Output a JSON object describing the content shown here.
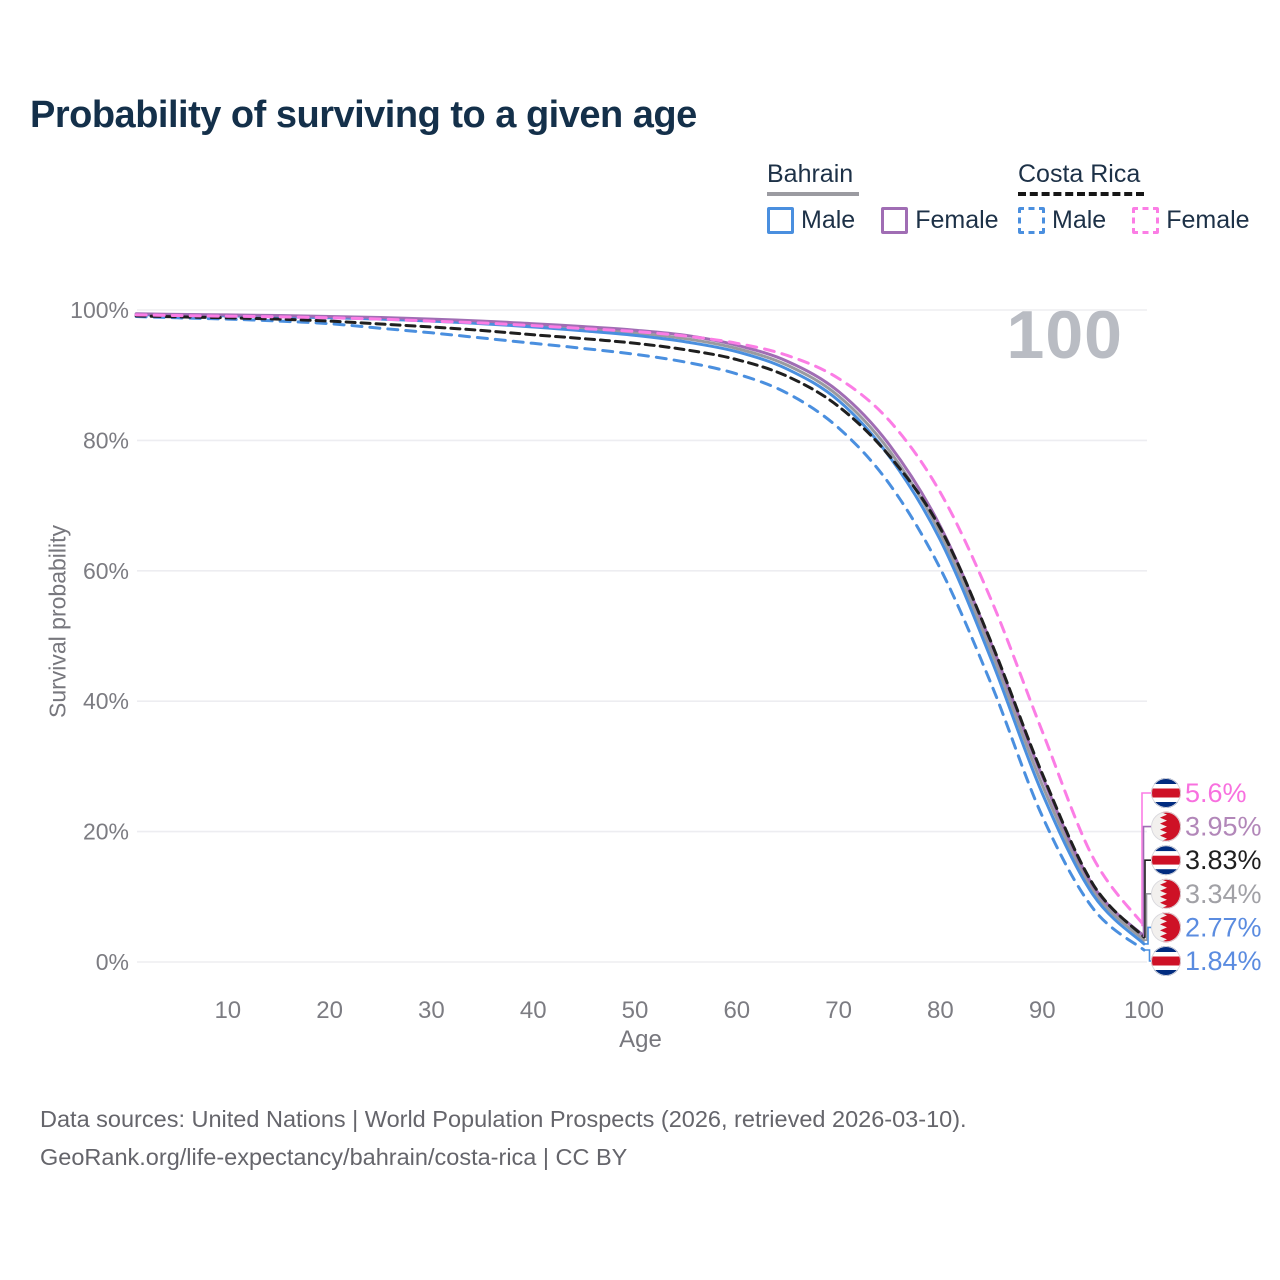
{
  "title": "Probability of surviving to a given age",
  "legend": {
    "groups": [
      {
        "name": "Bahrain",
        "line_style": "solid",
        "items": [
          {
            "label": "Male",
            "color": "#4a8fdf"
          },
          {
            "label": "Female",
            "color": "#a06db4"
          }
        ]
      },
      {
        "name": "Costa Rica",
        "line_style": "dashed",
        "items": [
          {
            "label": "Male",
            "color": "#4a8fdf"
          },
          {
            "label": "Female",
            "color": "#fb7de5"
          }
        ]
      }
    ]
  },
  "footer": {
    "line1": "Data sources: United Nations | World Population Prospects (2026, retrieved 2026-03-10).",
    "line2": "GeoRank.org/life-expectancy/bahrain/costa-rica | CC BY"
  },
  "chart_data": {
    "type": "line",
    "title": "Probability of surviving to a given age",
    "xlabel": "Age",
    "ylabel": "Survival probability",
    "watermark": "100",
    "xlim": [
      0,
      100
    ],
    "ylim": [
      0,
      100
    ],
    "x_ticks": [
      10,
      20,
      30,
      40,
      50,
      60,
      70,
      80,
      90,
      100
    ],
    "y_ticks": [
      0,
      20,
      40,
      60,
      80,
      100
    ],
    "y_tick_suffix": "%",
    "grid": "horizontal",
    "legend_position": "top-right",
    "x": [
      1,
      5,
      10,
      15,
      20,
      25,
      30,
      35,
      40,
      45,
      50,
      55,
      60,
      65,
      70,
      75,
      80,
      85,
      90,
      95,
      100
    ],
    "series": [
      {
        "name": "Bahrain Total",
        "color": "#9a9aa0",
        "dashed": false,
        "flag": "costarica_none_bahrain",
        "flag_country": "bahrain",
        "end_label": "3.34%",
        "end_value": 3.34,
        "label_color": "#a1a1a6",
        "values": [
          99.35,
          99.28,
          99.15,
          99.05,
          98.9,
          98.72,
          98.45,
          98.1,
          97.65,
          97.1,
          96.5,
          95.6,
          94.1,
          91.5,
          86.8,
          78.4,
          65.7,
          47.6,
          27.2,
          11.0,
          3.34
        ]
      },
      {
        "name": "Bahrain Male",
        "color": "#4a8fdf",
        "dashed": false,
        "flag_country": "bahrain",
        "end_label": "2.77%",
        "end_value": 2.77,
        "label_color": "#5b8ce0",
        "values": [
          99.3,
          99.2,
          99.1,
          98.97,
          98.8,
          98.6,
          98.3,
          97.9,
          97.4,
          96.8,
          96.1,
          95.1,
          93.6,
          90.9,
          86.1,
          77.5,
          64.7,
          46.4,
          25.9,
          10.3,
          2.77
        ]
      },
      {
        "name": "Bahrain Female",
        "color": "#a06db4",
        "dashed": false,
        "flag_country": "bahrain",
        "end_label": "3.95%",
        "end_value": 3.95,
        "label_color": "#b287b9",
        "values": [
          99.42,
          99.33,
          99.25,
          99.15,
          99.0,
          98.85,
          98.6,
          98.3,
          97.9,
          97.45,
          96.9,
          96.1,
          94.6,
          92.1,
          87.5,
          79.3,
          66.8,
          48.8,
          28.5,
          11.7,
          3.95
        ]
      },
      {
        "name": "Costa Rica Male",
        "color": "#4a8fdf",
        "dashed": true,
        "flag_country": "costarica",
        "end_label": "1.84%",
        "end_value": 1.84,
        "label_color": "#5b8ce0",
        "values": [
          99.0,
          98.8,
          98.6,
          98.3,
          97.9,
          97.2,
          96.5,
          95.7,
          94.9,
          94.1,
          93.2,
          92.0,
          90.2,
          87.2,
          81.9,
          73.3,
          60.3,
          42.6,
          22.4,
          8.2,
          1.84
        ]
      },
      {
        "name": "Costa Rica Total",
        "color": "#1f1f1f",
        "dashed": true,
        "flag_country": "costarica",
        "end_label": "3.83%",
        "end_value": 3.83,
        "label_color": "#1f1f1f",
        "values": [
          99.1,
          98.95,
          98.8,
          98.6,
          98.3,
          97.85,
          97.4,
          96.85,
          96.2,
          95.6,
          94.9,
          93.9,
          92.4,
          89.8,
          85.2,
          77.6,
          66.5,
          49.0,
          28.9,
          11.9,
          3.83
        ]
      },
      {
        "name": "Costa Rica Female",
        "color": "#fb7de5",
        "dashed": true,
        "flag_country": "costarica",
        "end_label": "5.6%",
        "end_value": 5.6,
        "label_color": "#f870df",
        "values": [
          99.25,
          99.15,
          99.05,
          98.95,
          98.8,
          98.6,
          98.3,
          98.0,
          97.6,
          97.15,
          96.7,
          96.0,
          94.9,
          93.0,
          89.5,
          83.0,
          72.0,
          55.5,
          35.4,
          16.0,
          5.6
        ]
      }
    ]
  }
}
